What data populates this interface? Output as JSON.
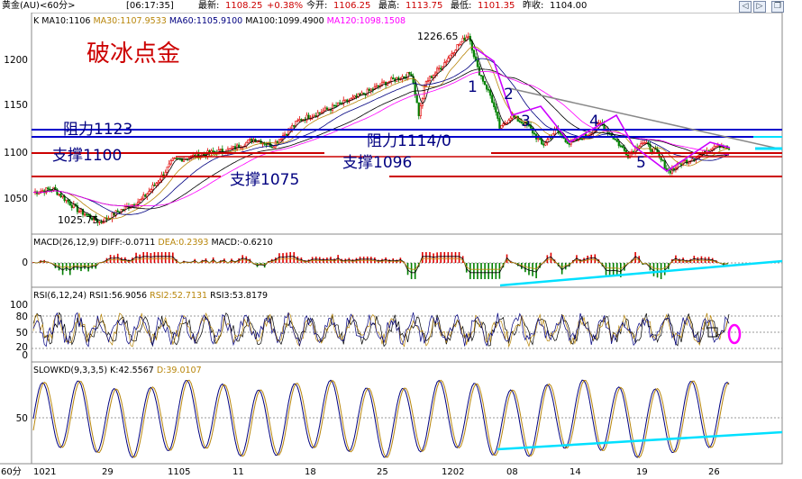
{
  "header": {
    "instrument": "黄金(AU)<60分>",
    "time": "[06:17:35]",
    "latest_label": "最新:",
    "latest": "1108.25",
    "change": "+0.38%",
    "open_label": "今开:",
    "open": "1106.25",
    "high_label": "最高:",
    "high": "1113.75",
    "low_label": "最低:",
    "low": "1101.35",
    "prev_close_label": "昨收:",
    "prev_close": "1104.00"
  },
  "colors": {
    "up": "#e00000",
    "down": "#008000",
    "ma10": "#000000",
    "ma30": "#b8860b",
    "ma60": "#000080",
    "ma100": "#000000",
    "ma120": "#ff00ff",
    "resistance": "#0000cc",
    "support": "#cc0000",
    "cyan": "#00e0ff",
    "magenta": "#cc00cc"
  },
  "main_legend": [
    {
      "text": "K",
      "color": "#000000"
    },
    {
      "text": "MA10:1106",
      "color": "#000000"
    },
    {
      "text": "MA30:1107.9533",
      "color": "#b8860b"
    },
    {
      "text": "MA60:1105.9100",
      "color": "#000080"
    },
    {
      "text": "MA100:1099.4900",
      "color": "#000000"
    },
    {
      "text": "MA120:1098.1508",
      "color": "#ff00ff"
    }
  ],
  "macd_legend": [
    {
      "text": "MACD(26,12,9)",
      "color": "#000000"
    },
    {
      "text": "DIFF:-0.0711",
      "color": "#000000"
    },
    {
      "text": "DEA:0.2393",
      "color": "#b8860b"
    },
    {
      "text": "MACD:-0.6210",
      "color": "#000000"
    }
  ],
  "rsi_legend": [
    {
      "text": "RSI(6,12,24)",
      "color": "#000000"
    },
    {
      "text": "RSI1:56.9056",
      "color": "#000000"
    },
    {
      "text": "RSI2:52.7131",
      "color": "#b8860b"
    },
    {
      "text": "RSI3:53.8179",
      "color": "#000000"
    }
  ],
  "kd_legend": [
    {
      "text": "SLOWKD(9,3,3,5)",
      "color": "#000000"
    },
    {
      "text": "K:42.5567",
      "color": "#000000"
    },
    {
      "text": "D:39.0107",
      "color": "#b8860b"
    }
  ],
  "annotations": {
    "title": "破冰点金",
    "resistance_1123": "阻力1123",
    "resistance_1114": "阻力1114/0",
    "support_1100": "支撑1100",
    "support_1096": "支撑1096",
    "support_1075": "支撑1075",
    "high_label": "1226.65",
    "low_label": "1025.75",
    "wave_1": "1",
    "wave_2": "2",
    "wave_3": "3",
    "wave_4": "4",
    "wave_5": "5"
  },
  "chart_data": {
    "type": "line",
    "x_ticks": [
      "60分",
      "1021",
      "29",
      "1105",
      "11",
      "18",
      "25",
      "1202",
      "08",
      "14",
      "19",
      "26"
    ],
    "price_axis": {
      "ticks": [
        "1200",
        "1150",
        "1100",
        "1050"
      ],
      "ylim": [
        1015,
        1240
      ]
    },
    "macd_axis": {
      "ticks": [
        "0"
      ]
    },
    "rsi_axis": {
      "ticks": [
        "100",
        "80",
        "50",
        "20",
        "0"
      ],
      "ylim": [
        0,
        100
      ]
    },
    "kd_axis": {
      "ticks": [
        "50"
      ],
      "ylim": [
        0,
        100
      ]
    },
    "price_anchors": [
      [
        0,
        1058
      ],
      [
        22,
        1062
      ],
      [
        48,
        1040
      ],
      [
        74,
        1026
      ],
      [
        95,
        1038
      ],
      [
        120,
        1050
      ],
      [
        140,
        1072
      ],
      [
        155,
        1092
      ],
      [
        185,
        1098
      ],
      [
        220,
        1104
      ],
      [
        245,
        1115
      ],
      [
        265,
        1108
      ],
      [
        295,
        1135
      ],
      [
        330,
        1148
      ],
      [
        360,
        1160
      ],
      [
        390,
        1175
      ],
      [
        420,
        1185
      ],
      [
        428,
        1140
      ],
      [
        435,
        1175
      ],
      [
        455,
        1195
      ],
      [
        468,
        1212
      ],
      [
        483,
        1226.65
      ],
      [
        493,
        1190
      ],
      [
        508,
        1160
      ],
      [
        518,
        1125
      ],
      [
        530,
        1140
      ],
      [
        550,
        1128
      ],
      [
        565,
        1108
      ],
      [
        580,
        1125
      ],
      [
        595,
        1110
      ],
      [
        615,
        1120
      ],
      [
        630,
        1132
      ],
      [
        645,
        1115
      ],
      [
        660,
        1098
      ],
      [
        675,
        1112
      ],
      [
        690,
        1102
      ],
      [
        705,
        1080
      ],
      [
        720,
        1090
      ],
      [
        740,
        1098
      ],
      [
        758,
        1110
      ],
      [
        772,
        1104
      ]
    ],
    "resistance_levels": [
      1123,
      1114
    ],
    "support_levels": [
      1100,
      1096,
      1075
    ]
  }
}
